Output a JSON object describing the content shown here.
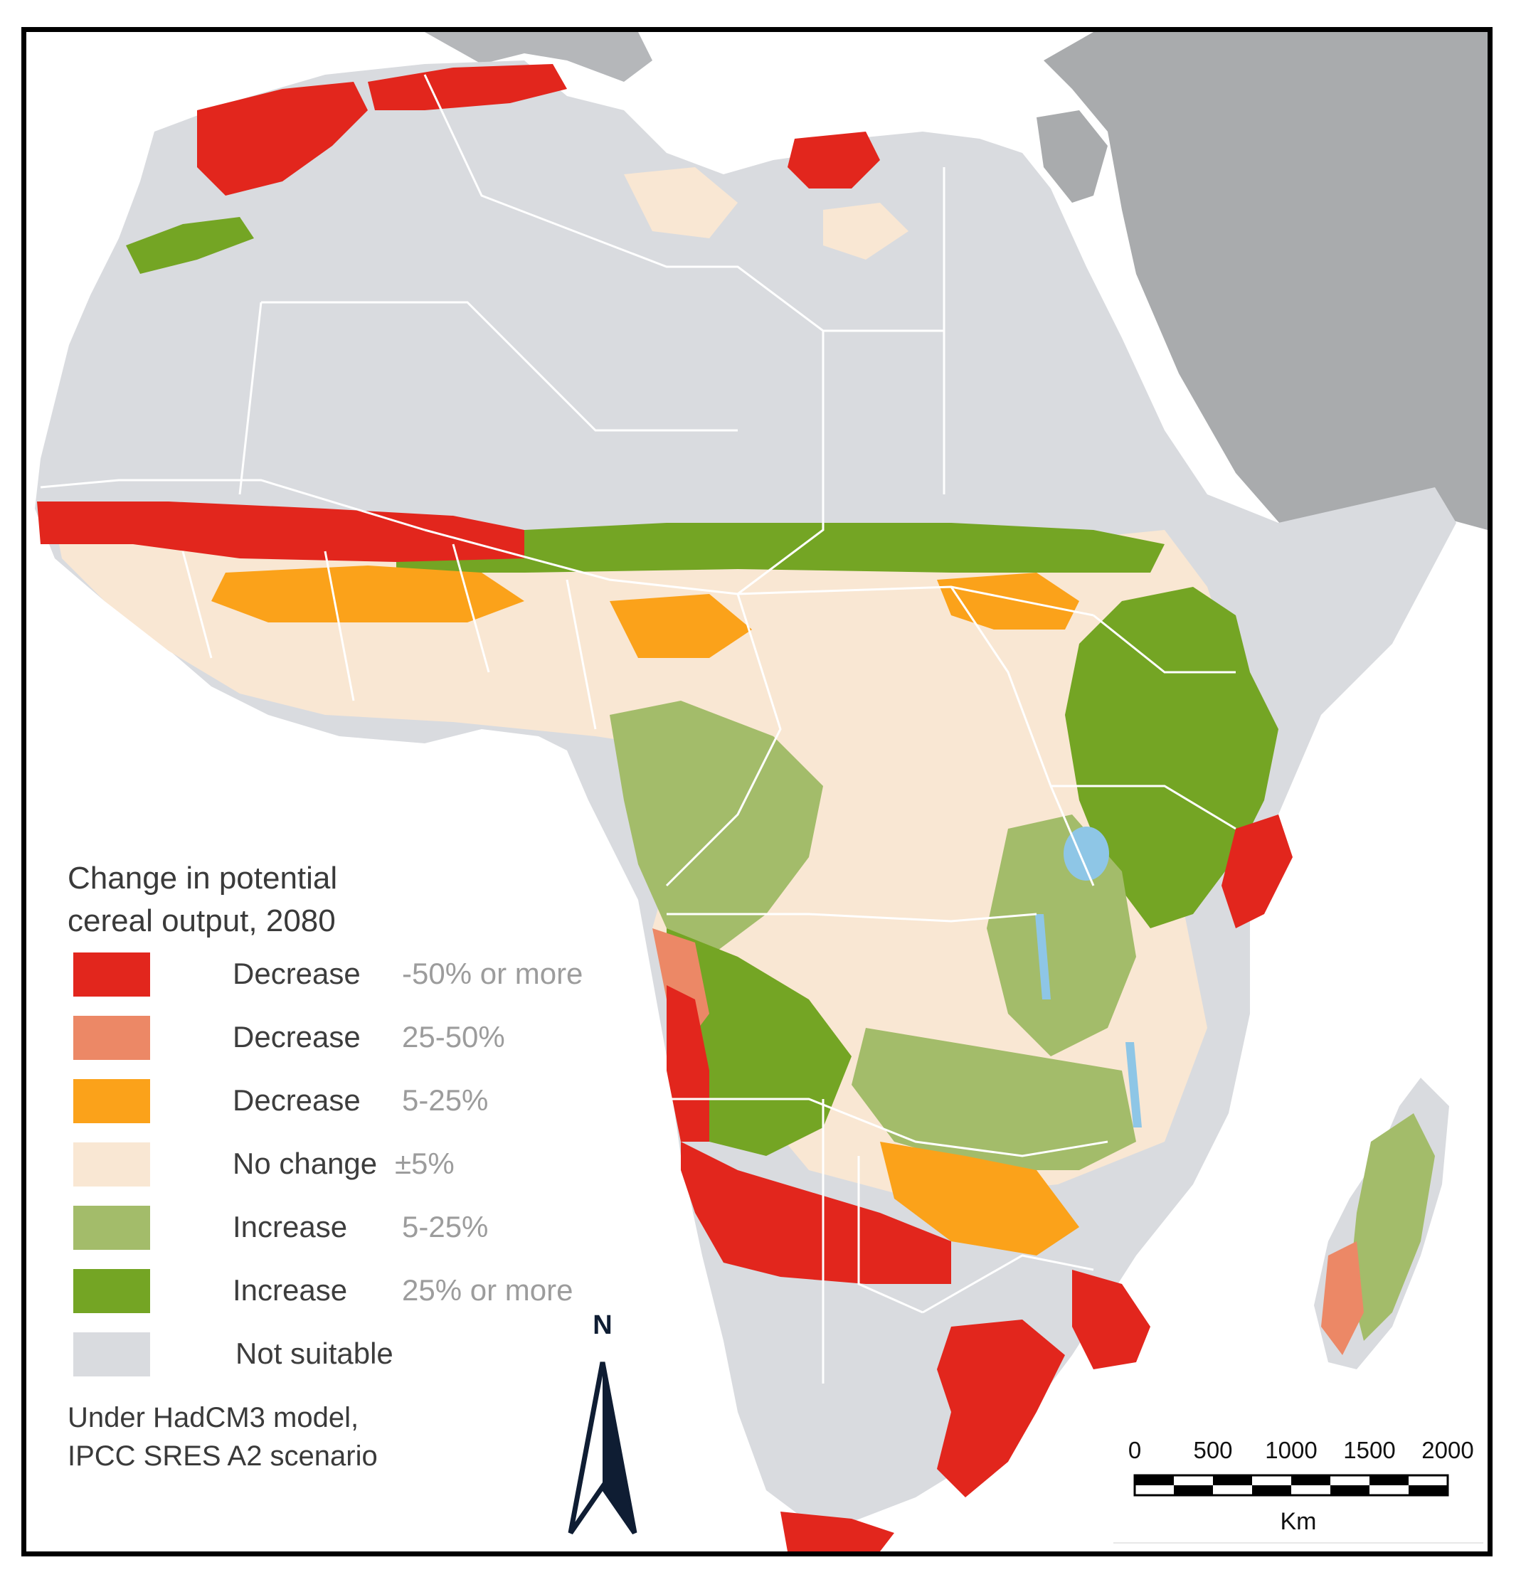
{
  "legend": {
    "title": "Change in potential\ncereal output, 2080",
    "items": [
      {
        "label": "Decrease",
        "range": "-50% or more",
        "color": "#e2261d"
      },
      {
        "label": "Decrease",
        "range": "25-50%",
        "color": "#ec8866"
      },
      {
        "label": "Decrease",
        "range": "5-25%",
        "color": "#fba21a"
      },
      {
        "label": "No change",
        "range": "±5%",
        "color": "#f9e7d3"
      },
      {
        "label": "Increase",
        "range": "5-25%",
        "color": "#a3bc6a"
      },
      {
        "label": "Increase",
        "range": "25% or more",
        "color": "#74a524"
      },
      {
        "label": "Not suitable",
        "range": "",
        "color": "#d9dbdf"
      }
    ],
    "note": "Under HadCM3 model,\nIPCC SRES A2 scenario"
  },
  "north_arrow": {
    "label": "N"
  },
  "scale_bar": {
    "ticks": [
      "0",
      "500",
      "1000",
      "1500",
      "2000"
    ],
    "unit": "Km"
  },
  "colors": {
    "ocean": "#ffffff",
    "land_other": "#a9abad",
    "not_suitable": "#d9dbdf",
    "borders": "#ffffff",
    "lakes": "#8ec6e6",
    "frame": "#000000"
  }
}
